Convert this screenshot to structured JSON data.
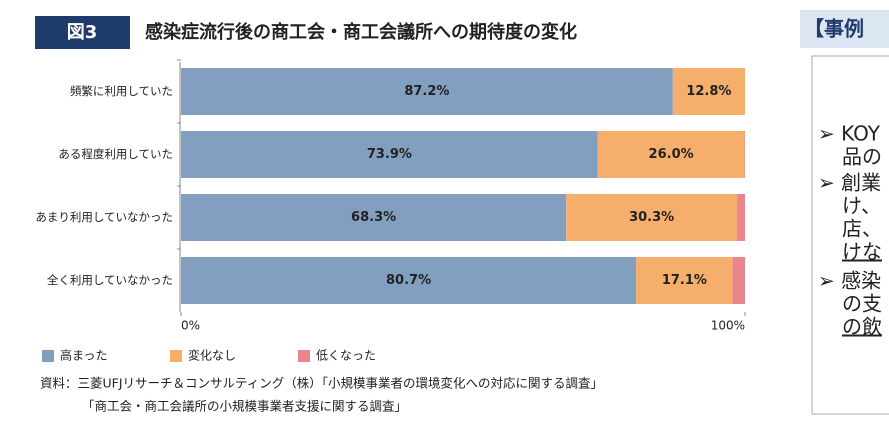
{
  "chart_data": {
    "type": "bar",
    "orientation": "horizontal",
    "stacked": true,
    "figure_label": "図3",
    "title": "感染症流行後の商工会・商工会議所への期待度の変化",
    "categories": [
      "頻繁に利用していた",
      "ある程度利用していた",
      "あまり利用していなかった",
      "全く利用していなかった"
    ],
    "series": [
      {
        "name": "高まった",
        "color": "#829fbf",
        "values": [
          87.2,
          73.9,
          68.3,
          80.7
        ],
        "value_labels": [
          "87.2%",
          "73.9%",
          "68.3%",
          "80.7%"
        ]
      },
      {
        "name": "変化なし",
        "color": "#f5ae6b",
        "values": [
          12.8,
          26.0,
          30.3,
          17.1
        ],
        "value_labels": [
          "12.8%",
          "26.0%",
          "30.3%",
          "17.1%"
        ]
      },
      {
        "name": "低くなった",
        "color": "#e8868b",
        "values": [
          0,
          0.1,
          1.4,
          2.2
        ]
      }
    ],
    "xlim": [
      0,
      100
    ],
    "xticks": [
      {
        "value": 0,
        "label": "0%"
      },
      {
        "value": 100,
        "label": "100%"
      }
    ],
    "legend": "bottom-left",
    "source": [
      "資料：三菱UFJリサーチ＆コンサルティング（株）「小規模事業者の環境変化への対応に関する調査」",
      "「商工会・商工会議所の小規模事業者支援に関する調査」"
    ]
  },
  "side_panel": {
    "heading": "【事例",
    "lines": [
      "➢ KOY",
      "品の",
      "➢ 創業",
      "け、",
      "店、",
      "けな",
      "➢ 感染",
      "の支",
      "の飲"
    ]
  }
}
